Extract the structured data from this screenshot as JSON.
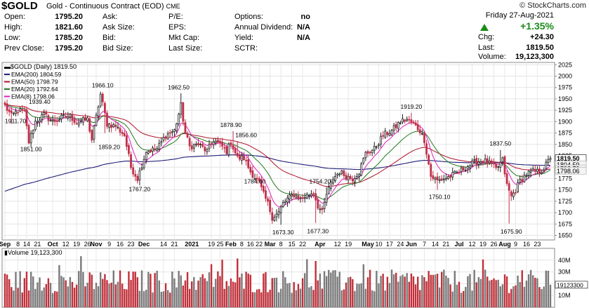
{
  "header": {
    "symbol": "$GOLD",
    "name": "Gold - Continuous Contract (EOD)",
    "exchange": "CME",
    "brand": "© StockCharts.com",
    "quote_rows": [
      [
        "Open:",
        "1795.20",
        "Ask:",
        "",
        "P/E:",
        "",
        "Options:",
        "no"
      ],
      [
        "High:",
        "1821.60",
        "Ask Size:",
        "",
        "EPS:",
        "",
        "Annual Dividend:",
        "N/A"
      ],
      [
        "Low:",
        "1785.20",
        "Bid:",
        "",
        "Mkt Cap:",
        "",
        "Yield:",
        "N/A"
      ],
      [
        "Prev Close:",
        "1795.20",
        "Bid Size:",
        "",
        "Last Size:",
        "",
        "SCTR:",
        ""
      ]
    ],
    "date": "Friday   27-Aug-2021",
    "pct_change": "+1.35%",
    "chg_label": "Chg:",
    "chg_value": "+24.30",
    "last_label": "Last:",
    "last_value": "1819.50",
    "volume_label": "Volume:",
    "volume_value": "19,123,300",
    "up_color": "#1a8a1a"
  },
  "chart_data": {
    "type": "candlestick",
    "title": "$GOLD (Daily) 1819.50",
    "legend": [
      {
        "name": "EMA(200) 1804.59",
        "color": "#1f1f7a"
      },
      {
        "name": "EMA(50) 1798.79",
        "color": "#b0102a"
      },
      {
        "name": "EMA(20) 1792.64",
        "color": "#1f7a1f"
      },
      {
        "name": "EMA(8) 1798.06",
        "color": "#e020c0"
      }
    ],
    "ylim": [
      1640,
      2030
    ],
    "y_ticks": [
      1650,
      1675,
      1700,
      1725,
      1750,
      1775,
      1800,
      1825,
      1850,
      1875,
      1900,
      1925,
      1950,
      1975,
      2000,
      2025
    ],
    "x_labels": [
      {
        "t": "Sep",
        "i": 0,
        "bold": true
      },
      {
        "t": "8",
        "i": 6
      },
      {
        "t": "14",
        "i": 10
      },
      {
        "t": "21",
        "i": 15
      },
      {
        "t": "Oct",
        "i": 22,
        "bold": true
      },
      {
        "t": "12",
        "i": 28
      },
      {
        "t": "19",
        "i": 33
      },
      {
        "t": "26",
        "i": 38
      },
      {
        "t": "Nov",
        "i": 42,
        "bold": true
      },
      {
        "t": "9",
        "i": 48
      },
      {
        "t": "16",
        "i": 53
      },
      {
        "t": "23",
        "i": 58
      },
      {
        "t": "Dec",
        "i": 64,
        "bold": true
      },
      {
        "t": "14",
        "i": 73
      },
      {
        "t": "21",
        "i": 78
      },
      {
        "t": "2021",
        "i": 86,
        "bold": true
      },
      {
        "t": "19",
        "i": 95
      },
      {
        "t": "25",
        "i": 99
      },
      {
        "t": "Feb",
        "i": 104,
        "bold": true
      },
      {
        "t": "8",
        "i": 109
      },
      {
        "t": "16",
        "i": 113
      },
      {
        "t": "22",
        "i": 117
      },
      {
        "t": "Mar",
        "i": 122,
        "bold": true
      },
      {
        "t": "8",
        "i": 127
      },
      {
        "t": "15",
        "i": 132
      },
      {
        "t": "22",
        "i": 137
      },
      {
        "t": "Apr",
        "i": 145,
        "bold": true
      },
      {
        "t": "12",
        "i": 153
      },
      {
        "t": "19",
        "i": 158
      },
      {
        "t": "May",
        "i": 167,
        "bold": true
      },
      {
        "t": "10",
        "i": 172
      },
      {
        "t": "17",
        "i": 177
      },
      {
        "t": "24",
        "i": 182
      },
      {
        "t": "Jun",
        "i": 187,
        "bold": true
      },
      {
        "t": "7",
        "i": 193
      },
      {
        "t": "14",
        "i": 198
      },
      {
        "t": "21",
        "i": 203
      },
      {
        "t": "Jul",
        "i": 209,
        "bold": true
      },
      {
        "t": "12",
        "i": 215
      },
      {
        "t": "19",
        "i": 220
      },
      {
        "t": "26",
        "i": 225
      },
      {
        "t": "Aug",
        "i": 230,
        "bold": true
      },
      {
        "t": "9",
        "i": 235
      },
      {
        "t": "16",
        "i": 240
      },
      {
        "t": "23",
        "i": 245
      }
    ],
    "anchors": [
      [
        0,
        1935
      ],
      [
        3,
        1912
      ],
      [
        6,
        1925
      ],
      [
        9,
        1920
      ],
      [
        11,
        1855
      ],
      [
        14,
        1900
      ],
      [
        18,
        1915
      ],
      [
        22,
        1900
      ],
      [
        27,
        1910
      ],
      [
        30,
        1912
      ],
      [
        33,
        1898
      ],
      [
        38,
        1905
      ],
      [
        40,
        1860
      ],
      [
        44,
        1960
      ],
      [
        47,
        1895
      ],
      [
        51,
        1890
      ],
      [
        55,
        1870
      ],
      [
        58,
        1800
      ],
      [
        61,
        1775
      ],
      [
        65,
        1835
      ],
      [
        70,
        1840
      ],
      [
        74,
        1870
      ],
      [
        78,
        1880
      ],
      [
        81,
        1935
      ],
      [
        83,
        1875
      ],
      [
        85,
        1845
      ],
      [
        89,
        1850
      ],
      [
        93,
        1835
      ],
      [
        96,
        1860
      ],
      [
        100,
        1845
      ],
      [
        102,
        1835
      ],
      [
        104,
        1855
      ],
      [
        107,
        1820
      ],
      [
        110,
        1820
      ],
      [
        113,
        1790
      ],
      [
        117,
        1765
      ],
      [
        119,
        1740
      ],
      [
        121,
        1720
      ],
      [
        123,
        1690
      ],
      [
        126,
        1700
      ],
      [
        128,
        1720
      ],
      [
        130,
        1730
      ],
      [
        133,
        1740
      ],
      [
        136,
        1730
      ],
      [
        139,
        1738
      ],
      [
        142,
        1745
      ],
      [
        144,
        1715
      ],
      [
        146,
        1700
      ],
      [
        148,
        1740
      ],
      [
        151,
        1775
      ],
      [
        154,
        1790
      ],
      [
        157,
        1780
      ],
      [
        160,
        1775
      ],
      [
        163,
        1790
      ],
      [
        166,
        1830
      ],
      [
        170,
        1840
      ],
      [
        174,
        1870
      ],
      [
        178,
        1880
      ],
      [
        182,
        1900
      ],
      [
        185,
        1905
      ],
      [
        188,
        1895
      ],
      [
        191,
        1880
      ],
      [
        193,
        1860
      ],
      [
        196,
        1780
      ],
      [
        199,
        1770
      ],
      [
        202,
        1775
      ],
      [
        205,
        1780
      ],
      [
        209,
        1790
      ],
      [
        212,
        1800
      ],
      [
        216,
        1810
      ],
      [
        220,
        1815
      ],
      [
        224,
        1805
      ],
      [
        226,
        1795
      ],
      [
        229,
        1815
      ],
      [
        231,
        1760
      ],
      [
        233,
        1735
      ],
      [
        235,
        1750
      ],
      [
        237,
        1770
      ],
      [
        240,
        1785
      ],
      [
        243,
        1790
      ],
      [
        246,
        1790
      ],
      [
        248,
        1798
      ],
      [
        251,
        1819.5
      ]
    ],
    "spikes": [
      {
        "i": 3,
        "low": 1895
      },
      {
        "i": 11,
        "low": 1850
      },
      {
        "i": 44,
        "high": 1966
      },
      {
        "i": 46,
        "low": 1875
      },
      {
        "i": 62,
        "low": 1760
      },
      {
        "i": 81,
        "high": 1962.5
      },
      {
        "i": 105,
        "high": 1879
      },
      {
        "i": 107,
        "high": 1857
      },
      {
        "i": 114,
        "low": 1780
      },
      {
        "i": 127,
        "low": 1673.3
      },
      {
        "i": 143,
        "low": 1677.3
      },
      {
        "i": 148,
        "high": 1756
      },
      {
        "i": 187,
        "high": 1919.2
      },
      {
        "i": 199,
        "low": 1750.1
      },
      {
        "i": 228,
        "high": 1837.5
      },
      {
        "i": 232,
        "low": 1675.9
      }
    ],
    "price_labels": [
      {
        "t": "1911.70",
        "i": 0,
        "v": 1897,
        "anchor": "start"
      },
      {
        "t": "1939.40",
        "i": 11,
        "v": 1939,
        "anchor": "start"
      },
      {
        "t": "1851.00",
        "i": 12,
        "v": 1835,
        "anchor": "middle"
      },
      {
        "t": "1966.10",
        "i": 45,
        "v": 1975,
        "anchor": "middle"
      },
      {
        "t": "1859.20",
        "i": 48,
        "v": 1840,
        "anchor": "middle"
      },
      {
        "t": "1767.20",
        "i": 62,
        "v": 1747,
        "anchor": "middle"
      },
      {
        "t": "1962.50",
        "i": 80,
        "v": 1971,
        "anchor": "middle"
      },
      {
        "t": "1878.90",
        "i": 104,
        "v": 1888,
        "anchor": "middle"
      },
      {
        "t": "1856.60",
        "i": 111,
        "v": 1866,
        "anchor": "middle"
      },
      {
        "t": "1784.60",
        "i": 115,
        "v": 1764,
        "anchor": "middle"
      },
      {
        "t": "1754.20",
        "i": 145,
        "v": 1764,
        "anchor": "middle"
      },
      {
        "t": "1673.30",
        "i": 128,
        "v": 1652,
        "anchor": "middle"
      },
      {
        "t": "1677.30",
        "i": 144,
        "v": 1655,
        "anchor": "middle"
      },
      {
        "t": "1919.20",
        "i": 187,
        "v": 1928,
        "anchor": "middle"
      },
      {
        "t": "1750.10",
        "i": 200,
        "v": 1730,
        "anchor": "middle"
      },
      {
        "t": "1837.50",
        "i": 228,
        "v": 1847,
        "anchor": "middle"
      },
      {
        "t": "1675.90",
        "i": 233,
        "v": 1654,
        "anchor": "middle"
      }
    ],
    "right_value_labels": [
      {
        "t": "1819.50",
        "v": 1819.5,
        "bold": true
      },
      {
        "t": "1804.59",
        "v": 1806
      },
      {
        "t": "1798.79",
        "v": 1797
      },
      {
        "t": "1798.06",
        "v": 1792
      }
    ],
    "ema_periods": [
      200,
      50,
      20,
      8
    ],
    "ema200_start": 1745,
    "volume": {
      "title": "Volume 19,123,300",
      "last_label": "19123300",
      "last_value": 19123300,
      "ticks": [
        {
          "t": "10M",
          "v": 10000000
        },
        {
          "t": "20M",
          "v": 20000000
        },
        {
          "t": "30M",
          "v": 30000000
        },
        {
          "t": "40M",
          "v": 40000000
        }
      ],
      "ymax": 50000000,
      "up_color": "#7a7a7a",
      "down_color": "#c0303a"
    }
  }
}
